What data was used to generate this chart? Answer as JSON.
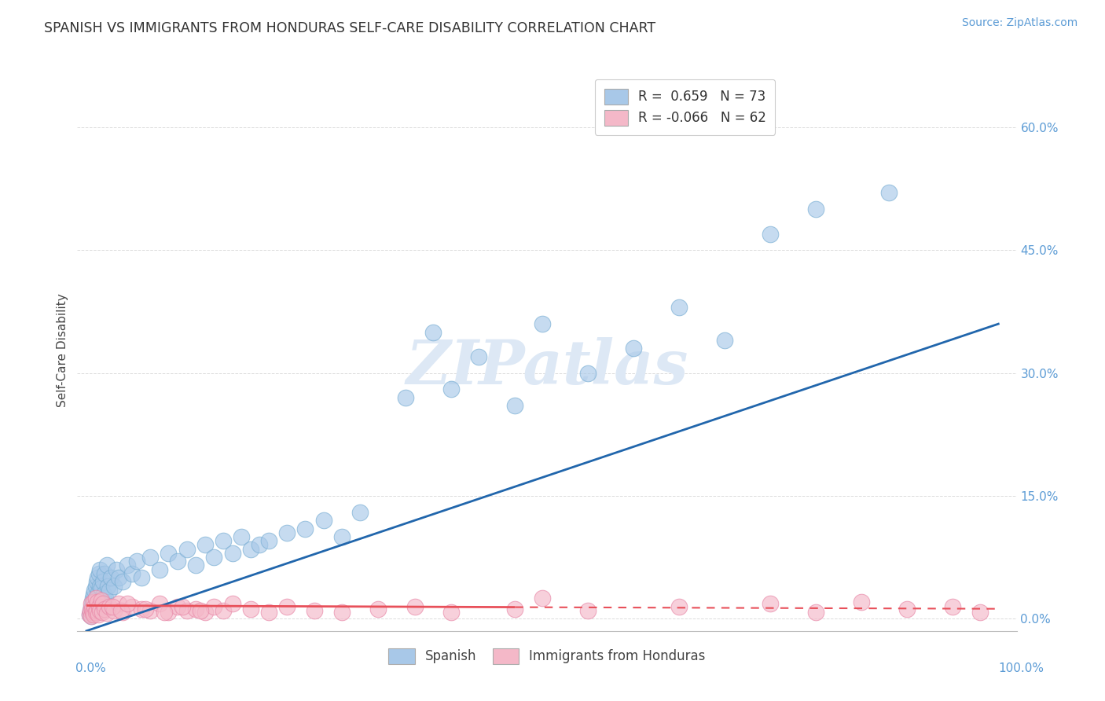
{
  "title": "SPANISH VS IMMIGRANTS FROM HONDURAS SELF-CARE DISABILITY CORRELATION CHART",
  "source": "Source: ZipAtlas.com",
  "ylabel": "Self-Care Disability",
  "ytick_values": [
    0.0,
    15.0,
    30.0,
    45.0,
    60.0
  ],
  "xlim": [
    0.0,
    100.0
  ],
  "ylim": [
    0.0,
    65.0
  ],
  "blue_color": "#a8c8e8",
  "blue_edge_color": "#7aafd4",
  "pink_color": "#f4b8c8",
  "pink_edge_color": "#e888a8",
  "blue_line_color": "#2166ac",
  "pink_line_color": "#e8505a",
  "background_color": "#ffffff",
  "grid_color": "#cccccc",
  "title_color": "#333333",
  "ytick_color": "#5b9bd5",
  "source_color": "#5b9bd5",
  "watermark_color": "#dde8f5",
  "legend1_text": "R =  0.659   N = 73",
  "legend2_text": "R = -0.066   N = 62",
  "bottom_legend1": "Spanish",
  "bottom_legend2": "Immigrants from Honduras",
  "blue_scatter_x": [
    0.3,
    0.4,
    0.5,
    0.5,
    0.6,
    0.6,
    0.7,
    0.7,
    0.8,
    0.8,
    0.9,
    0.9,
    1.0,
    1.0,
    1.1,
    1.1,
    1.2,
    1.2,
    1.3,
    1.4,
    1.4,
    1.5,
    1.5,
    1.6,
    1.7,
    1.8,
    1.9,
    2.0,
    2.1,
    2.2,
    2.3,
    2.5,
    2.7,
    3.0,
    3.3,
    3.5,
    4.0,
    4.5,
    5.0,
    5.5,
    6.0,
    7.0,
    8.0,
    9.0,
    10.0,
    11.0,
    12.0,
    13.0,
    14.0,
    15.0,
    16.0,
    17.0,
    18.0,
    19.0,
    20.0,
    22.0,
    24.0,
    26.0,
    28.0,
    30.0,
    35.0,
    38.0,
    40.0,
    43.0,
    47.0,
    50.0,
    55.0,
    60.0,
    65.0,
    70.0,
    75.0,
    80.0,
    88.0
  ],
  "blue_scatter_y": [
    0.5,
    1.0,
    0.3,
    1.5,
    0.8,
    2.0,
    1.2,
    2.5,
    0.6,
    3.0,
    1.8,
    3.5,
    2.2,
    4.0,
    1.0,
    4.5,
    2.8,
    5.0,
    3.2,
    1.5,
    5.5,
    4.0,
    6.0,
    3.8,
    2.0,
    4.5,
    3.0,
    5.5,
    2.5,
    6.5,
    4.0,
    3.5,
    5.0,
    4.0,
    6.0,
    5.0,
    4.5,
    6.5,
    5.5,
    7.0,
    5.0,
    7.5,
    6.0,
    8.0,
    7.0,
    8.5,
    6.5,
    9.0,
    7.5,
    9.5,
    8.0,
    10.0,
    8.5,
    9.0,
    9.5,
    10.5,
    11.0,
    12.0,
    10.0,
    13.0,
    27.0,
    35.0,
    28.0,
    32.0,
    26.0,
    36.0,
    30.0,
    33.0,
    38.0,
    34.0,
    47.0,
    50.0,
    52.0
  ],
  "pink_scatter_x": [
    0.3,
    0.4,
    0.5,
    0.5,
    0.6,
    0.7,
    0.8,
    0.8,
    0.9,
    1.0,
    1.0,
    1.1,
    1.2,
    1.3,
    1.4,
    1.5,
    1.6,
    1.7,
    1.8,
    2.0,
    2.2,
    2.5,
    3.0,
    3.5,
    4.0,
    5.0,
    6.0,
    7.0,
    8.0,
    9.0,
    10.0,
    11.0,
    12.0,
    13.0,
    14.0,
    15.0,
    16.0,
    18.0,
    20.0,
    22.0,
    25.0,
    28.0,
    32.0,
    36.0,
    40.0,
    47.0,
    50.0,
    55.0,
    65.0,
    75.0,
    80.0,
    85.0,
    90.0,
    95.0,
    98.0,
    2.8,
    3.8,
    4.5,
    6.5,
    8.5,
    10.5,
    12.5
  ],
  "pink_scatter_y": [
    0.5,
    1.0,
    0.3,
    1.8,
    1.2,
    0.8,
    2.0,
    0.5,
    1.5,
    0.8,
    2.5,
    1.0,
    2.0,
    0.5,
    1.5,
    1.0,
    2.2,
    0.8,
    1.8,
    1.2,
    0.7,
    1.5,
    1.0,
    1.8,
    0.8,
    1.5,
    1.2,
    1.0,
    1.8,
    0.8,
    1.5,
    1.0,
    1.2,
    0.8,
    1.5,
    1.0,
    1.8,
    1.2,
    0.8,
    1.5,
    1.0,
    0.8,
    1.2,
    1.5,
    0.8,
    1.2,
    2.5,
    1.0,
    1.5,
    1.8,
    0.8,
    2.0,
    1.2,
    1.5,
    0.8,
    1.5,
    1.0,
    1.8,
    1.2,
    0.8,
    1.5,
    1.0
  ],
  "pink_solid_end_x": 47.0
}
